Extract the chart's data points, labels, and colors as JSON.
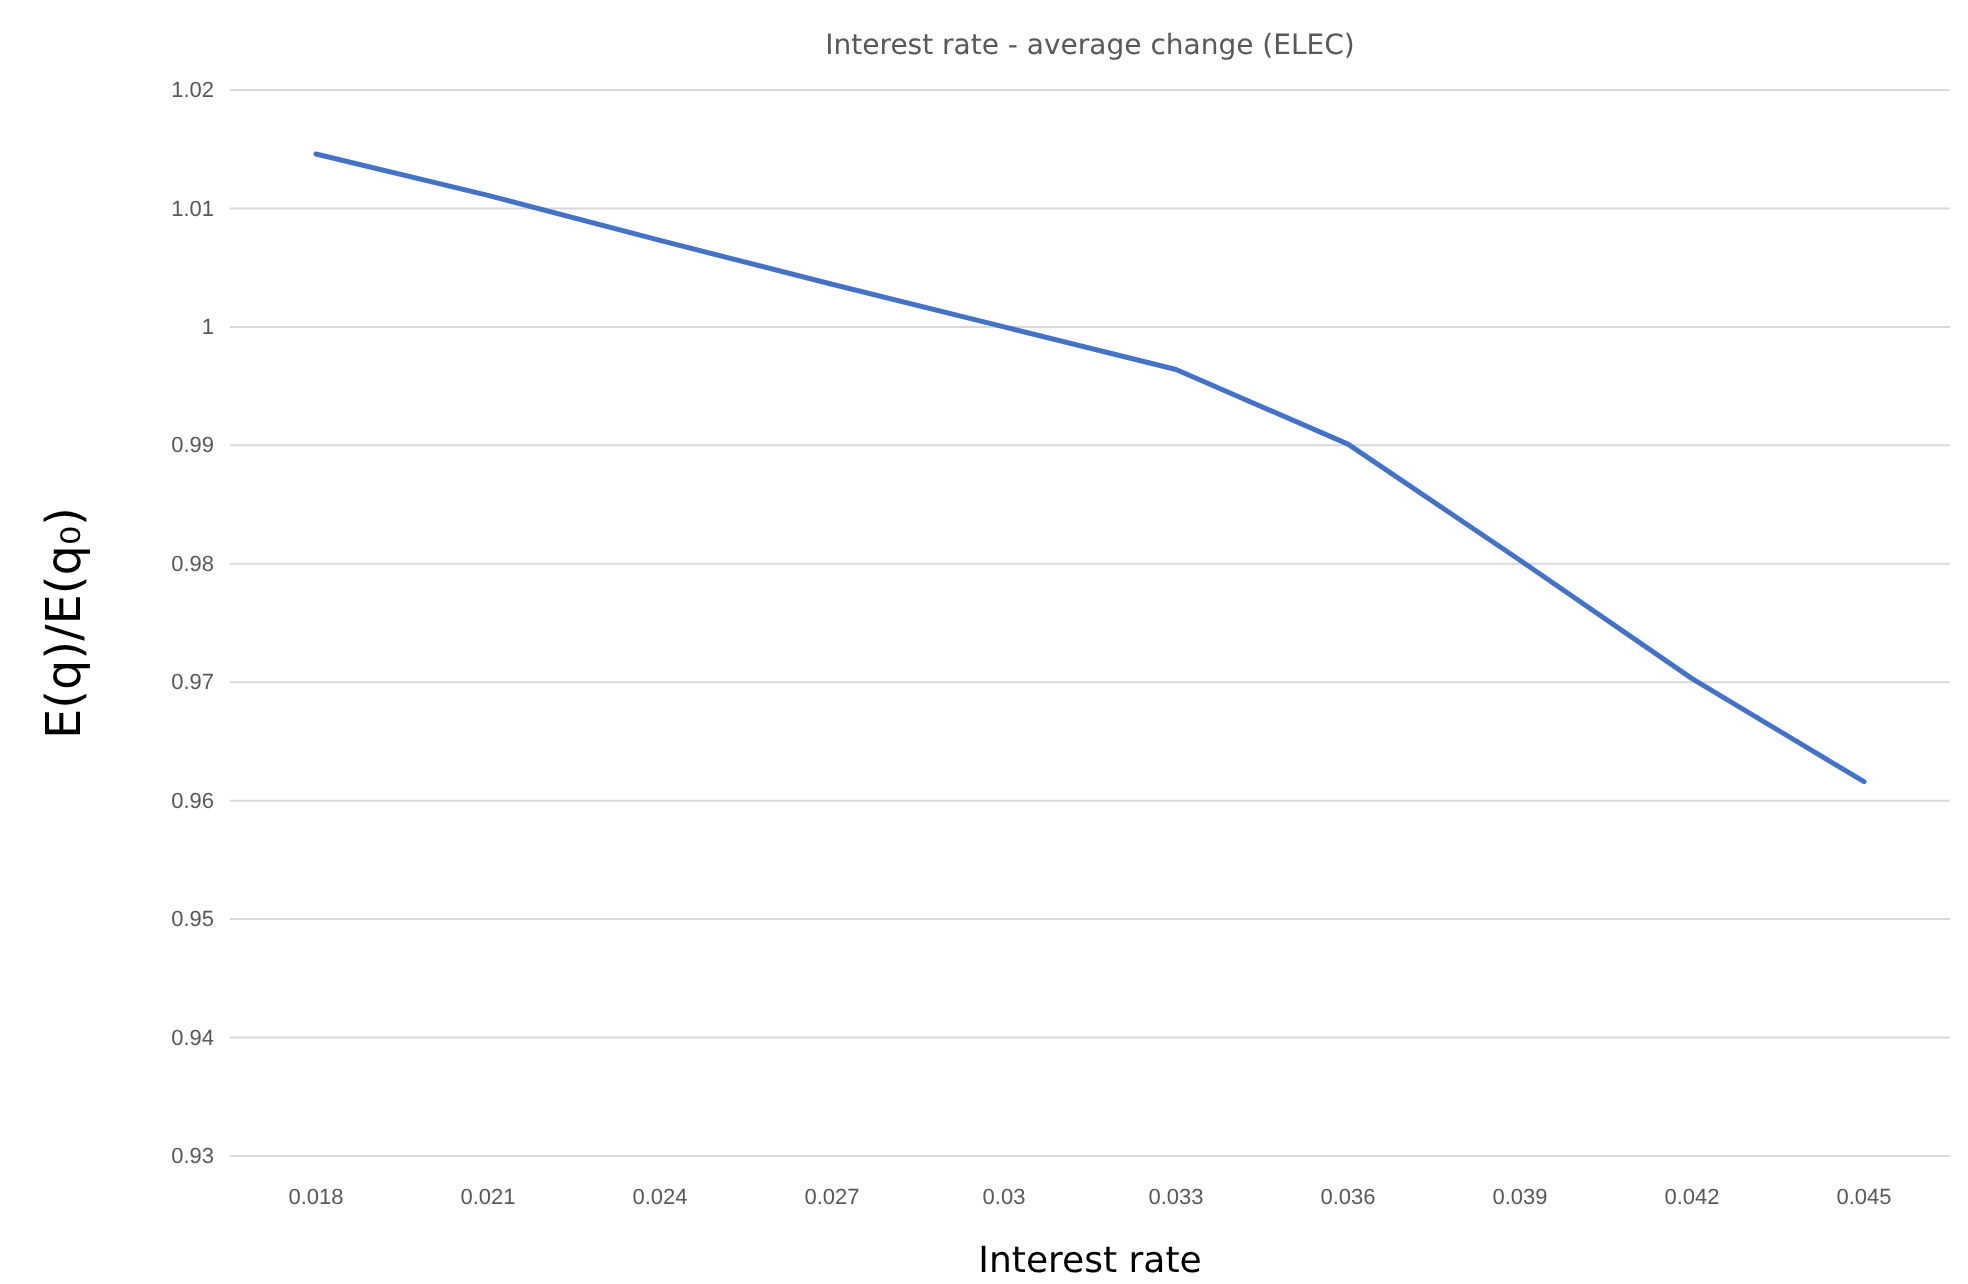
{
  "chart_data": {
    "type": "line",
    "title": "Interest rate - average change (ELEC)",
    "xlabel": "Interest rate",
    "ylabel": "E(q)/E(q₀)",
    "categories": [
      "0.018",
      "0.021",
      "0.024",
      "0.027",
      "0.03",
      "0.033",
      "0.036",
      "0.039",
      "0.042",
      "0.045"
    ],
    "series": [
      {
        "color": "#4472c4",
        "values": [
          1.0146,
          1.0111,
          1.0073,
          1.0036,
          1.0,
          0.9964,
          0.9901,
          0.9803,
          0.9703,
          0.9616
        ]
      }
    ],
    "ylim": [
      0.93,
      1.02
    ],
    "yticks": [
      {
        "value": 0.93,
        "label": "0.93"
      },
      {
        "value": 0.94,
        "label": "0.94"
      },
      {
        "value": 0.95,
        "label": "0.95"
      },
      {
        "value": 0.96,
        "label": "0.96"
      },
      {
        "value": 0.97,
        "label": "0.97"
      },
      {
        "value": 0.98,
        "label": "0.98"
      },
      {
        "value": 0.99,
        "label": "0.99"
      },
      {
        "value": 1,
        "label": "1"
      },
      {
        "value": 1.01,
        "label": "1.01"
      },
      {
        "value": 1.02,
        "label": "1.02"
      }
    ],
    "grid": "y",
    "marker": "none",
    "line_style": "solid"
  }
}
